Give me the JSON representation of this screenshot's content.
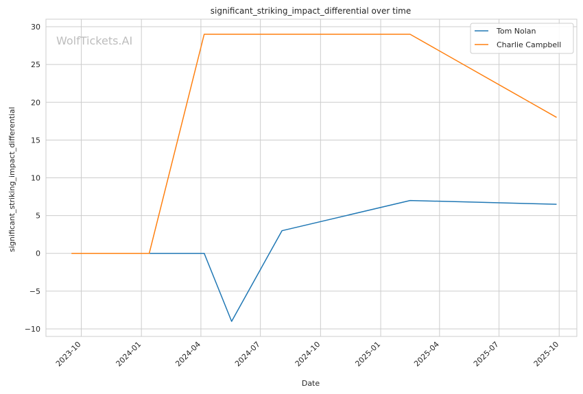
{
  "chart_data": {
    "type": "line",
    "title": "significant_striking_impact_differential over time",
    "xlabel": "Date",
    "ylabel": "significant_striking_impact_differential",
    "watermark": "WolfTickets.AI",
    "x_axis_type": "date",
    "xlim": [
      "2023-08-08",
      "2025-10-28"
    ],
    "ylim": [
      -11,
      31
    ],
    "yticks": [
      -10,
      -5,
      0,
      5,
      10,
      15,
      20,
      25,
      30
    ],
    "ytick_labels": [
      "−10",
      "−5",
      "0",
      "5",
      "10",
      "15",
      "20",
      "25",
      "30"
    ],
    "xticks": [
      "2023-10-01",
      "2024-01-01",
      "2024-04-01",
      "2024-07-01",
      "2024-10-01",
      "2025-01-01",
      "2025-04-01",
      "2025-07-01",
      "2025-10-01"
    ],
    "xtick_labels": [
      "2023-10",
      "2024-01",
      "2024-04",
      "2024-07",
      "2024-10",
      "2025-01",
      "2025-04",
      "2025-07",
      "2025-10"
    ],
    "grid": true,
    "legend_position": "top-right",
    "series": [
      {
        "name": "Tom Nolan",
        "color": "#1f77b4",
        "points": [
          {
            "x": "2024-01-13",
            "y": 0
          },
          {
            "x": "2024-04-06",
            "y": 0
          },
          {
            "x": "2024-05-18",
            "y": -9
          },
          {
            "x": "2024-08-03",
            "y": 3
          },
          {
            "x": "2025-02-15",
            "y": 7
          },
          {
            "x": "2025-09-27",
            "y": 6.5
          }
        ]
      },
      {
        "name": "Charlie Campbell",
        "color": "#ff7f0e",
        "points": [
          {
            "x": "2023-09-16",
            "y": 0
          },
          {
            "x": "2024-01-13",
            "y": 0
          },
          {
            "x": "2024-04-06",
            "y": 29
          },
          {
            "x": "2025-02-15",
            "y": 29
          },
          {
            "x": "2025-09-27",
            "y": 18
          }
        ]
      }
    ]
  }
}
